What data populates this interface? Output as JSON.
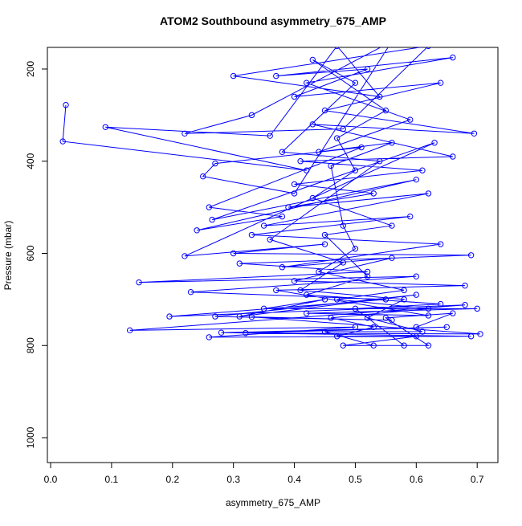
{
  "chart_data": {
    "type": "line",
    "markers": "open-circle",
    "title": "ATOM2 Southbound asymmetry_675_AMP",
    "x_label": "asymmetry_675_AMP",
    "y_label": "Pressure (mbar)",
    "color": "#0000ff",
    "xlim": [
      -0.0053,
      0.734
    ],
    "ylim": [
      1054,
      153
    ],
    "y_reversed": true,
    "xticks": [
      {
        "value": 0,
        "label": "0.0"
      },
      0.1,
      0.2,
      0.3,
      0.4,
      0.5,
      0.6,
      0.7
    ],
    "yticks": [
      200,
      400,
      600,
      800,
      1000
    ],
    "x": [
      0.025,
      0.02,
      0.42,
      0.09,
      0.36,
      0.47,
      0.54,
      0.3,
      0.62,
      0.48,
      0.22,
      0.33,
      0.56,
      0.4,
      0.25,
      0.27,
      0.51,
      0.26,
      0.38,
      0.24,
      0.6,
      0.265,
      0.63,
      0.22,
      0.45,
      0.3,
      0.69,
      0.31,
      0.52,
      0.145,
      0.6,
      0.23,
      0.55,
      0.195,
      0.68,
      0.13,
      0.5,
      0.26,
      0.69,
      0.28,
      0.65,
      0.32,
      0.705,
      0.33,
      0.56,
      0.27,
      0.6,
      0.31,
      0.45,
      0.35,
      0.7,
      0.42,
      0.62,
      0.37,
      0.68,
      0.4,
      0.56,
      0.38,
      0.64,
      0.33,
      0.59,
      0.35,
      0.62,
      0.39,
      0.53,
      0.4,
      0.61,
      0.41,
      0.66,
      0.43,
      0.695,
      0.45,
      0.64,
      0.4,
      0.52,
      0.37,
      0.66,
      0.42,
      0.59,
      0.44,
      0.56,
      0.46,
      0.48,
      0.5,
      0.44,
      0.58,
      0.47,
      0.62,
      0.46,
      0.53,
      0.47,
      0.6,
      0.48,
      0.58,
      0.5,
      0.64,
      0.42,
      0.52,
      0.45,
      0.56,
      0.43,
      0.5,
      0.47,
      0.55,
      0.43,
      0.5,
      0.38,
      0.54,
      0.36,
      0.48,
      0.41,
      0.58,
      0.52,
      0.61,
      0.45,
      0.53,
      0.62,
      0.55,
      0.66,
      0.6
    ],
    "values": [
      278,
      357,
      420,
      326,
      345,
      150,
      260,
      215,
      150,
      330,
      340,
      300,
      140,
      470,
      433,
      405,
      370,
      500,
      520,
      550,
      440,
      527,
      360,
      606,
      580,
      600,
      604,
      622,
      640,
      663,
      650,
      684,
      700,
      737,
      712,
      767,
      760,
      782,
      780,
      772,
      760,
      773,
      775,
      738,
      745,
      737,
      690,
      737,
      700,
      720,
      720,
      730,
      735,
      680,
      670,
      660,
      610,
      630,
      580,
      560,
      520,
      540,
      470,
      500,
      470,
      450,
      420,
      400,
      390,
      320,
      340,
      290,
      230,
      260,
      200,
      215,
      175,
      230,
      310,
      380,
      360,
      410,
      540,
      590,
      640,
      680,
      700,
      720,
      740,
      760,
      780,
      780,
      800,
      800,
      720,
      710,
      690,
      650,
      560,
      540,
      480,
      420,
      350,
      290,
      180,
      230,
      380,
      400,
      570,
      620,
      680,
      700,
      740,
      770,
      770,
      800,
      800,
      740,
      730,
      760
    ]
  }
}
